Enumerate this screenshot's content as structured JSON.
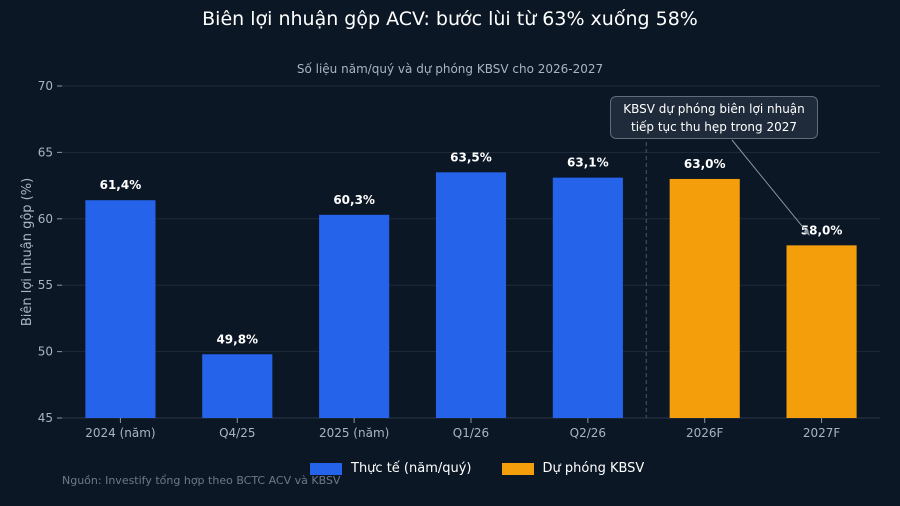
{
  "chart_data": {
    "type": "bar",
    "title": "Biên lợi nhuận gộp ACV: bước lùi từ 63% xuống 58%",
    "subtitle": "Số liệu năm/quý và dự phóng KBSV cho 2026-2027",
    "ylabel": "Biên lợi nhuận gộp (%)",
    "xlabel": "",
    "ylim": [
      45,
      70
    ],
    "yticks": [
      45,
      50,
      55,
      60,
      65,
      70
    ],
    "grid": true,
    "categories": [
      "2024 (năm)",
      "Q4/25",
      "2025 (năm)",
      "Q1/26",
      "Q2/26",
      "2026F",
      "2027F"
    ],
    "values": [
      61.4,
      49.8,
      60.3,
      63.5,
      63.1,
      63.0,
      58.0
    ],
    "value_labels": [
      "61,4%",
      "49,8%",
      "60,3%",
      "63,5%",
      "63,1%",
      "63,0%",
      "58,0%"
    ],
    "kinds": [
      "actual",
      "actual",
      "actual",
      "actual",
      "actual",
      "forecast",
      "forecast"
    ],
    "divider_after_index": 4,
    "series": [
      {
        "name": "Thực tế (năm/quý)",
        "color": "#2563eb"
      },
      {
        "name": "Dự phóng KBSV",
        "color": "#f59e0b"
      }
    ],
    "annotation": {
      "line1": "KBSV dự phóng biên lợi nhuận",
      "line2": "tiếp tục thu hẹp trong 2027",
      "target_index": 6
    },
    "legend_position": "bottom-center"
  },
  "source": "Nguồn: Investify tổng hợp theo BCTC ACV và KBSV"
}
